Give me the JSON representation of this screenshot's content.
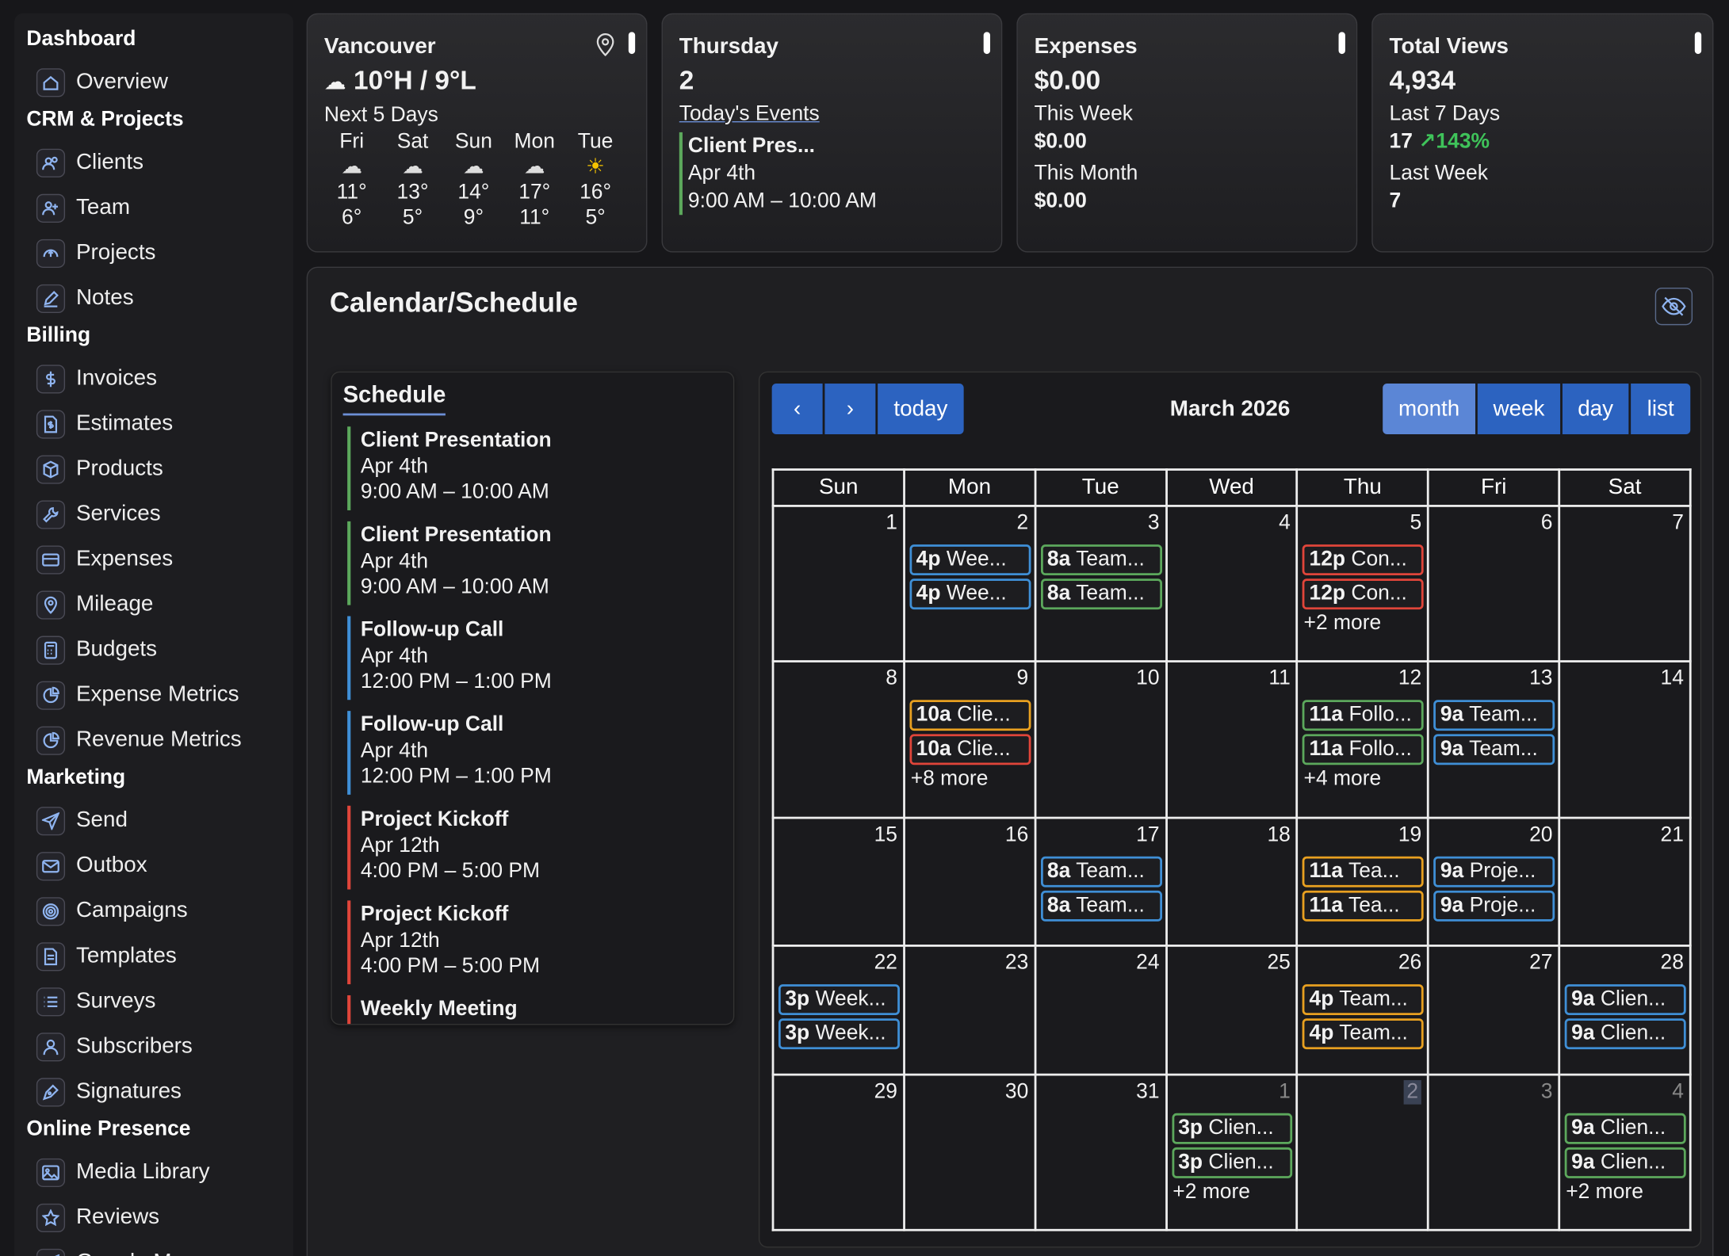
{
  "sidebar": {
    "sections": [
      {
        "title": "Dashboard",
        "items": [
          {
            "label": "Overview",
            "icon": "home-icon"
          }
        ]
      },
      {
        "title": "CRM & Projects",
        "items": [
          {
            "label": "Clients",
            "icon": "users-icon"
          },
          {
            "label": "Team",
            "icon": "user-plus-icon"
          },
          {
            "label": "Projects",
            "icon": "project-icon"
          },
          {
            "label": "Notes",
            "icon": "pencil-icon"
          }
        ]
      },
      {
        "title": "Billing",
        "items": [
          {
            "label": "Invoices",
            "icon": "dollar-icon"
          },
          {
            "label": "Estimates",
            "icon": "file-dollar-icon"
          },
          {
            "label": "Products",
            "icon": "box-icon"
          },
          {
            "label": "Services",
            "icon": "wrench-icon"
          },
          {
            "label": "Expenses",
            "icon": "credit-card-icon"
          },
          {
            "label": "Mileage",
            "icon": "map-pin-icon"
          },
          {
            "label": "Budgets",
            "icon": "calculator-icon"
          },
          {
            "label": "Expense Metrics",
            "icon": "pie-chart-icon"
          },
          {
            "label": "Revenue Metrics",
            "icon": "pie-chart-icon"
          }
        ]
      },
      {
        "title": "Marketing",
        "items": [
          {
            "label": "Send",
            "icon": "send-icon"
          },
          {
            "label": "Outbox",
            "icon": "mail-icon"
          },
          {
            "label": "Campaigns",
            "icon": "target-icon"
          },
          {
            "label": "Templates",
            "icon": "template-icon"
          },
          {
            "label": "Surveys",
            "icon": "list-icon"
          },
          {
            "label": "Subscribers",
            "icon": "user-icon"
          },
          {
            "label": "Signatures",
            "icon": "pen-icon"
          }
        ]
      },
      {
        "title": "Online Presence",
        "items": [
          {
            "label": "Media Library",
            "icon": "image-icon"
          },
          {
            "label": "Reviews",
            "icon": "star-icon"
          },
          {
            "label": "Google Maps",
            "icon": "send-icon"
          }
        ]
      }
    ]
  },
  "weather": {
    "city": "Vancouver",
    "today": "10°H / 9°L",
    "next_label": "Next 5 Days",
    "days": [
      {
        "day": "Fri",
        "icon": "cloud-icon",
        "hi": "11°",
        "lo": "6°"
      },
      {
        "day": "Sat",
        "icon": "cloud-icon",
        "hi": "13°",
        "lo": "5°"
      },
      {
        "day": "Sun",
        "icon": "cloud-icon",
        "hi": "14°",
        "lo": "9°"
      },
      {
        "day": "Mon",
        "icon": "cloud-icon",
        "hi": "17°",
        "lo": "11°"
      },
      {
        "day": "Tue",
        "icon": "sun-icon",
        "hi": "16°",
        "lo": "5°"
      }
    ]
  },
  "today_card": {
    "weekday": "Thursday",
    "date": "2",
    "events_label": "Today's Events",
    "event_name": "Client Pres...",
    "event_date": "Apr 4th",
    "event_time": "9:00 AM – 10:00 AM"
  },
  "expenses_card": {
    "title": "Expenses",
    "total": "$0.00",
    "week_label": "This Week",
    "week_value": "$0.00",
    "month_label": "This Month",
    "month_value": "$0.00"
  },
  "views_card": {
    "title": "Total Views",
    "total": "4,934",
    "last7_label": "Last 7 Days",
    "last7_value": "17",
    "change": "143%",
    "lastweek_label": "Last Week",
    "lastweek_value": "7"
  },
  "calendar": {
    "title": "Calendar/Schedule",
    "schedule_title": "Schedule",
    "schedule": [
      {
        "name": "Client Presentation",
        "date": "Apr 4th",
        "time": "9:00 AM – 10:00 AM",
        "color": "#5ca85c"
      },
      {
        "name": "Client Presentation",
        "date": "Apr 4th",
        "time": "9:00 AM – 10:00 AM",
        "color": "#5ca85c"
      },
      {
        "name": "Follow-up Call",
        "date": "Apr 4th",
        "time": "12:00 PM – 1:00 PM",
        "color": "#3f8fd6"
      },
      {
        "name": "Follow-up Call",
        "date": "Apr 4th",
        "time": "12:00 PM – 1:00 PM",
        "color": "#3f8fd6"
      },
      {
        "name": "Project Kickoff",
        "date": "Apr 12th",
        "time": "4:00 PM – 5:00 PM",
        "color": "#e0453a"
      },
      {
        "name": "Project Kickoff",
        "date": "Apr 12th",
        "time": "4:00 PM – 5:00 PM",
        "color": "#e0453a"
      },
      {
        "name": "Weekly Meeting",
        "date": "",
        "time": "",
        "color": "#e0453a"
      }
    ],
    "toolbar": {
      "prev": "‹",
      "next": "›",
      "today": "today",
      "month": "month",
      "week": "week",
      "day": "day",
      "list": "list"
    },
    "month_title": "March 2026",
    "weekdays": [
      "Sun",
      "Mon",
      "Tue",
      "Wed",
      "Thu",
      "Fri",
      "Sat"
    ],
    "weeks": [
      [
        {
          "d": "1"
        },
        {
          "d": "2",
          "ev": [
            {
              "t": "4p",
              "n": "Wee...",
              "c": "#3f8fd6"
            },
            {
              "t": "4p",
              "n": "Wee...",
              "c": "#3f8fd6"
            }
          ]
        },
        {
          "d": "3",
          "ev": [
            {
              "t": "8a",
              "n": "Team...",
              "c": "#5ca85c"
            },
            {
              "t": "8a",
              "n": "Team...",
              "c": "#5ca85c"
            }
          ]
        },
        {
          "d": "4"
        },
        {
          "d": "5",
          "ev": [
            {
              "t": "12p",
              "n": "Con...",
              "c": "#e0453a"
            },
            {
              "t": "12p",
              "n": "Con...",
              "c": "#e0453a"
            }
          ],
          "more": "+2 more"
        },
        {
          "d": "6"
        },
        {
          "d": "7"
        }
      ],
      [
        {
          "d": "8"
        },
        {
          "d": "9",
          "ev": [
            {
              "t": "10a",
              "n": "Clie...",
              "c": "#e8a020"
            },
            {
              "t": "10a",
              "n": "Clie...",
              "c": "#e0453a"
            }
          ],
          "more": "+8 more"
        },
        {
          "d": "10"
        },
        {
          "d": "11"
        },
        {
          "d": "12",
          "ev": [
            {
              "t": "11a",
              "n": "Follo...",
              "c": "#5ca85c"
            },
            {
              "t": "11a",
              "n": "Follo...",
              "c": "#5ca85c"
            }
          ],
          "more": "+4 more"
        },
        {
          "d": "13",
          "ev": [
            {
              "t": "9a",
              "n": "Team...",
              "c": "#3f8fd6"
            },
            {
              "t": "9a",
              "n": "Team...",
              "c": "#3f8fd6"
            }
          ]
        },
        {
          "d": "14"
        }
      ],
      [
        {
          "d": "15"
        },
        {
          "d": "16"
        },
        {
          "d": "17",
          "ev": [
            {
              "t": "8a",
              "n": "Team...",
              "c": "#3f8fd6"
            },
            {
              "t": "8a",
              "n": "Team...",
              "c": "#3f8fd6"
            }
          ]
        },
        {
          "d": "18"
        },
        {
          "d": "19",
          "ev": [
            {
              "t": "11a",
              "n": "Tea...",
              "c": "#e8a020"
            },
            {
              "t": "11a",
              "n": "Tea...",
              "c": "#e8a020"
            }
          ]
        },
        {
          "d": "20",
          "ev": [
            {
              "t": "9a",
              "n": "Proje...",
              "c": "#3f8fd6"
            },
            {
              "t": "9a",
              "n": "Proje...",
              "c": "#3f8fd6"
            }
          ]
        },
        {
          "d": "21"
        }
      ],
      [
        {
          "d": "22",
          "ev": [
            {
              "t": "3p",
              "n": "Week...",
              "c": "#3f8fd6"
            },
            {
              "t": "3p",
              "n": "Week...",
              "c": "#3f8fd6"
            }
          ]
        },
        {
          "d": "23"
        },
        {
          "d": "24"
        },
        {
          "d": "25"
        },
        {
          "d": "26",
          "ev": [
            {
              "t": "4p",
              "n": "Team...",
              "c": "#e8a020"
            },
            {
              "t": "4p",
              "n": "Team...",
              "c": "#e8a020"
            }
          ]
        },
        {
          "d": "27"
        },
        {
          "d": "28",
          "ev": [
            {
              "t": "9a",
              "n": "Clien...",
              "c": "#3f8fd6"
            },
            {
              "t": "9a",
              "n": "Clien...",
              "c": "#3f8fd6"
            }
          ]
        }
      ],
      [
        {
          "d": "29"
        },
        {
          "d": "30"
        },
        {
          "d": "31"
        },
        {
          "d": "1",
          "o": true,
          "ev": [
            {
              "t": "3p",
              "n": "Clien...",
              "c": "#5ca85c"
            },
            {
              "t": "3p",
              "n": "Clien...",
              "c": "#5ca85c"
            }
          ],
          "more": "+2 more"
        },
        {
          "d": "2",
          "o": true,
          "hl": true
        },
        {
          "d": "3",
          "o": true
        },
        {
          "d": "4",
          "o": true,
          "ev": [
            {
              "t": "9a",
              "n": "Clien...",
              "c": "#5ca85c"
            },
            {
              "t": "9a",
              "n": "Clien...",
              "c": "#5ca85c"
            }
          ],
          "more": "+2 more"
        }
      ]
    ]
  },
  "colors": {
    "accent": "#2c63c0",
    "active": "#5b86d6",
    "green": "#3fc35a"
  }
}
